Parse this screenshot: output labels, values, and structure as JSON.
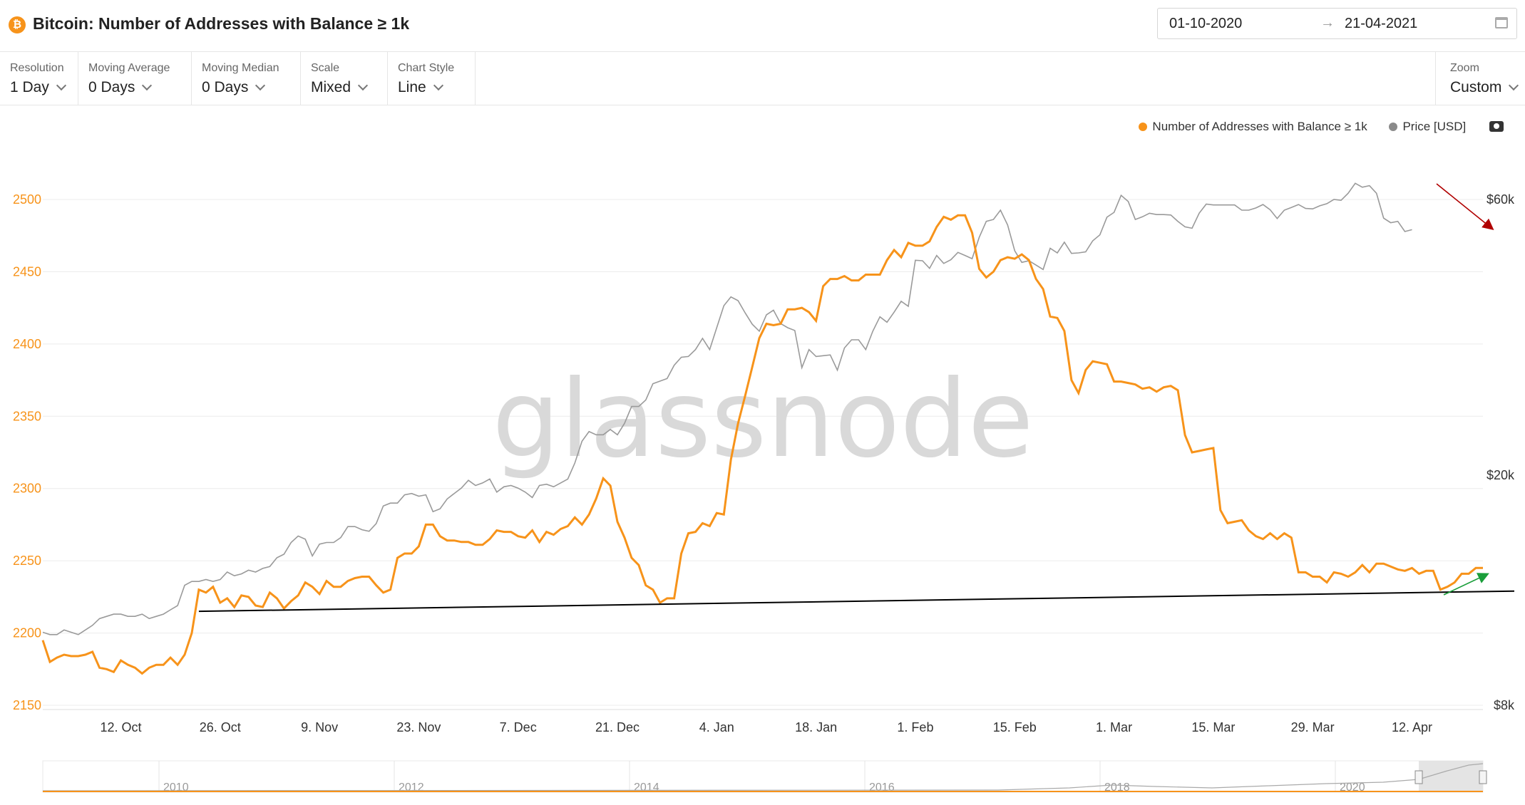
{
  "header": {
    "icon": "bitcoin-icon",
    "icon_glyph": "₿",
    "title": "Bitcoin: Number of Addresses with Balance ≥ 1k",
    "date_start": "01-10-2020",
    "date_arrow": "→",
    "date_end": "21-04-2021"
  },
  "toolbar": {
    "resolution": {
      "label": "Resolution",
      "value": "1 Day"
    },
    "moving_average": {
      "label": "Moving Average",
      "value": "0 Days"
    },
    "moving_median": {
      "label": "Moving Median",
      "value": "0 Days"
    },
    "scale": {
      "label": "Scale",
      "value": "Mixed"
    },
    "chart_style": {
      "label": "Chart Style",
      "value": "Line"
    },
    "zoom": {
      "label": "Zoom",
      "value": "Custom"
    }
  },
  "colors": {
    "addresses": "#f7931a",
    "price": "#9a9a9a",
    "support_line": "#000000",
    "down_arrow": "#b00000",
    "up_arrow": "#1a9e3a",
    "watermark": "#d9d9d9"
  },
  "watermark": "glassnode",
  "chart_data": {
    "type": "line",
    "legend_position": "top-right",
    "grid": true,
    "x_ticks": [
      "12. Oct",
      "26. Oct",
      "9. Nov",
      "23. Nov",
      "7. Dec",
      "21. Dec",
      "4. Jan",
      "18. Jan",
      "1. Feb",
      "15. Feb",
      "1. Mar",
      "15. Mar",
      "29. Mar",
      "12. Apr"
    ],
    "y_left": {
      "ticks": [
        2150,
        2200,
        2250,
        2300,
        2350,
        2400,
        2450,
        2500
      ],
      "range": [
        2150,
        2500
      ]
    },
    "y_right": {
      "ticks": [
        "$8k",
        "$20k",
        "$60k"
      ],
      "values": [
        8000,
        20000,
        60000
      ],
      "scale": "log"
    },
    "series": [
      {
        "name": "Number of Addresses with Balance ≥ 1k",
        "axis": "left",
        "values": [
          2195,
          2180,
          2183,
          2185,
          2184,
          2184,
          2185,
          2187,
          2176,
          2175,
          2173,
          2181,
          2178,
          2176,
          2172,
          2176,
          2178,
          2178,
          2183,
          2178,
          2185,
          2200,
          2230,
          2228,
          2232,
          2221,
          2224,
          2218,
          2226,
          2225,
          2219,
          2218,
          2228,
          2224,
          2217,
          2222,
          2226,
          2235,
          2232,
          2227,
          2236,
          2232,
          2232,
          2236,
          2238,
          2239,
          2239,
          2233,
          2228,
          2230,
          2252,
          2255,
          2255,
          2260,
          2275,
          2275,
          2267,
          2264,
          2264,
          2263,
          2263,
          2261,
          2261,
          2265,
          2271,
          2270,
          2270,
          2267,
          2266,
          2271,
          2263,
          2270,
          2268,
          2272,
          2274,
          2280,
          2275,
          2282,
          2293,
          2307,
          2302,
          2277,
          2266,
          2252,
          2247,
          2233,
          2230,
          2221,
          2224,
          2224,
          2255,
          2269,
          2270,
          2276,
          2274,
          2283,
          2282,
          2320,
          2345,
          2364,
          2384,
          2404,
          2414,
          2413,
          2414,
          2424,
          2424,
          2425,
          2422,
          2416,
          2440,
          2445,
          2445,
          2447,
          2444,
          2444,
          2448,
          2448,
          2448,
          2458,
          2465,
          2460,
          2470,
          2468,
          2468,
          2471,
          2481,
          2488,
          2486,
          2489,
          2489,
          2477,
          2452,
          2446,
          2450,
          2458,
          2460,
          2459,
          2462,
          2458,
          2445,
          2438,
          2419,
          2418,
          2409,
          2375,
          2366,
          2382,
          2388,
          2387,
          2386,
          2374,
          2374,
          2373,
          2372,
          2369,
          2370,
          2367,
          2370,
          2371,
          2368,
          2337,
          2325,
          2326,
          2327,
          2328,
          2285,
          2276,
          2277,
          2278,
          2271,
          2267,
          2265,
          2269,
          2265,
          2269,
          2266,
          2242,
          2242,
          2239,
          2239,
          2235,
          2242,
          2241,
          2239,
          2242,
          2247,
          2242,
          2248,
          2248,
          2246,
          2244,
          2243,
          2245,
          2241,
          2243,
          2243,
          2230,
          2232,
          2235,
          2241,
          2241,
          2245,
          2245
        ]
      },
      {
        "name": "Price [USD]",
        "axis": "right",
        "values": [
          10700,
          10600,
          10600,
          10800,
          10700,
          10600,
          10800,
          11000,
          11300,
          11400,
          11500,
          11500,
          11400,
          11400,
          11500,
          11300,
          11400,
          11500,
          11700,
          11900,
          12900,
          13100,
          13100,
          13200,
          13100,
          13200,
          13600,
          13400,
          13500,
          13700,
          13600,
          13800,
          13900,
          14400,
          14600,
          15300,
          15700,
          15500,
          14500,
          15200,
          15300,
          15300,
          15600,
          16300,
          16300,
          16100,
          16000,
          16500,
          17700,
          17900,
          17900,
          18500,
          18600,
          18400,
          18500,
          17300,
          17500,
          18200,
          18600,
          19000,
          19600,
          19200,
          19400,
          19700,
          18700,
          19100,
          19200,
          19000,
          18700,
          18300,
          19200,
          19300,
          19100,
          19400,
          19700,
          21000,
          22900,
          23800,
          23500,
          23500,
          24000,
          23500,
          24600,
          26300,
          26300,
          27000,
          28800,
          29100,
          29400,
          31000,
          32000,
          32100,
          33000,
          34500,
          33000,
          36000,
          39300,
          40700,
          40100,
          38200,
          36500,
          35500,
          37900,
          38600,
          36600,
          36000,
          35600,
          30700,
          33000,
          32100,
          32200,
          32300,
          30400,
          33200,
          34300,
          34300,
          33000,
          35500,
          37600,
          36800,
          38300,
          40000,
          39200,
          47100,
          47000,
          45600,
          48000,
          46500,
          47200,
          48600,
          48000,
          47400,
          51600,
          55000,
          55400,
          57500,
          54200,
          48900,
          46700,
          47000,
          46200,
          45400,
          49400,
          48500,
          50600,
          48400,
          48500,
          48700,
          50900,
          52100,
          55900,
          57000,
          61000,
          59500,
          55400,
          56000,
          56800,
          56500,
          56500,
          56400,
          55000,
          53800,
          53500,
          56800,
          58900,
          58700,
          58700,
          58700,
          58700,
          57500,
          57500,
          58000,
          58800,
          57600,
          55600,
          57500,
          58100,
          58800,
          57900,
          57800,
          58500,
          59000,
          60000,
          59800,
          61500,
          64000,
          63000,
          63400,
          61500,
          55700,
          54700,
          55000,
          52800,
          53200
        ]
      }
    ],
    "support_line": {
      "start_value": 2215,
      "end_value": 2229,
      "end_label_color": "black"
    },
    "navigator": {
      "ticks": [
        "2010",
        "2012",
        "2014",
        "2016",
        "2018",
        "2020"
      ]
    }
  }
}
